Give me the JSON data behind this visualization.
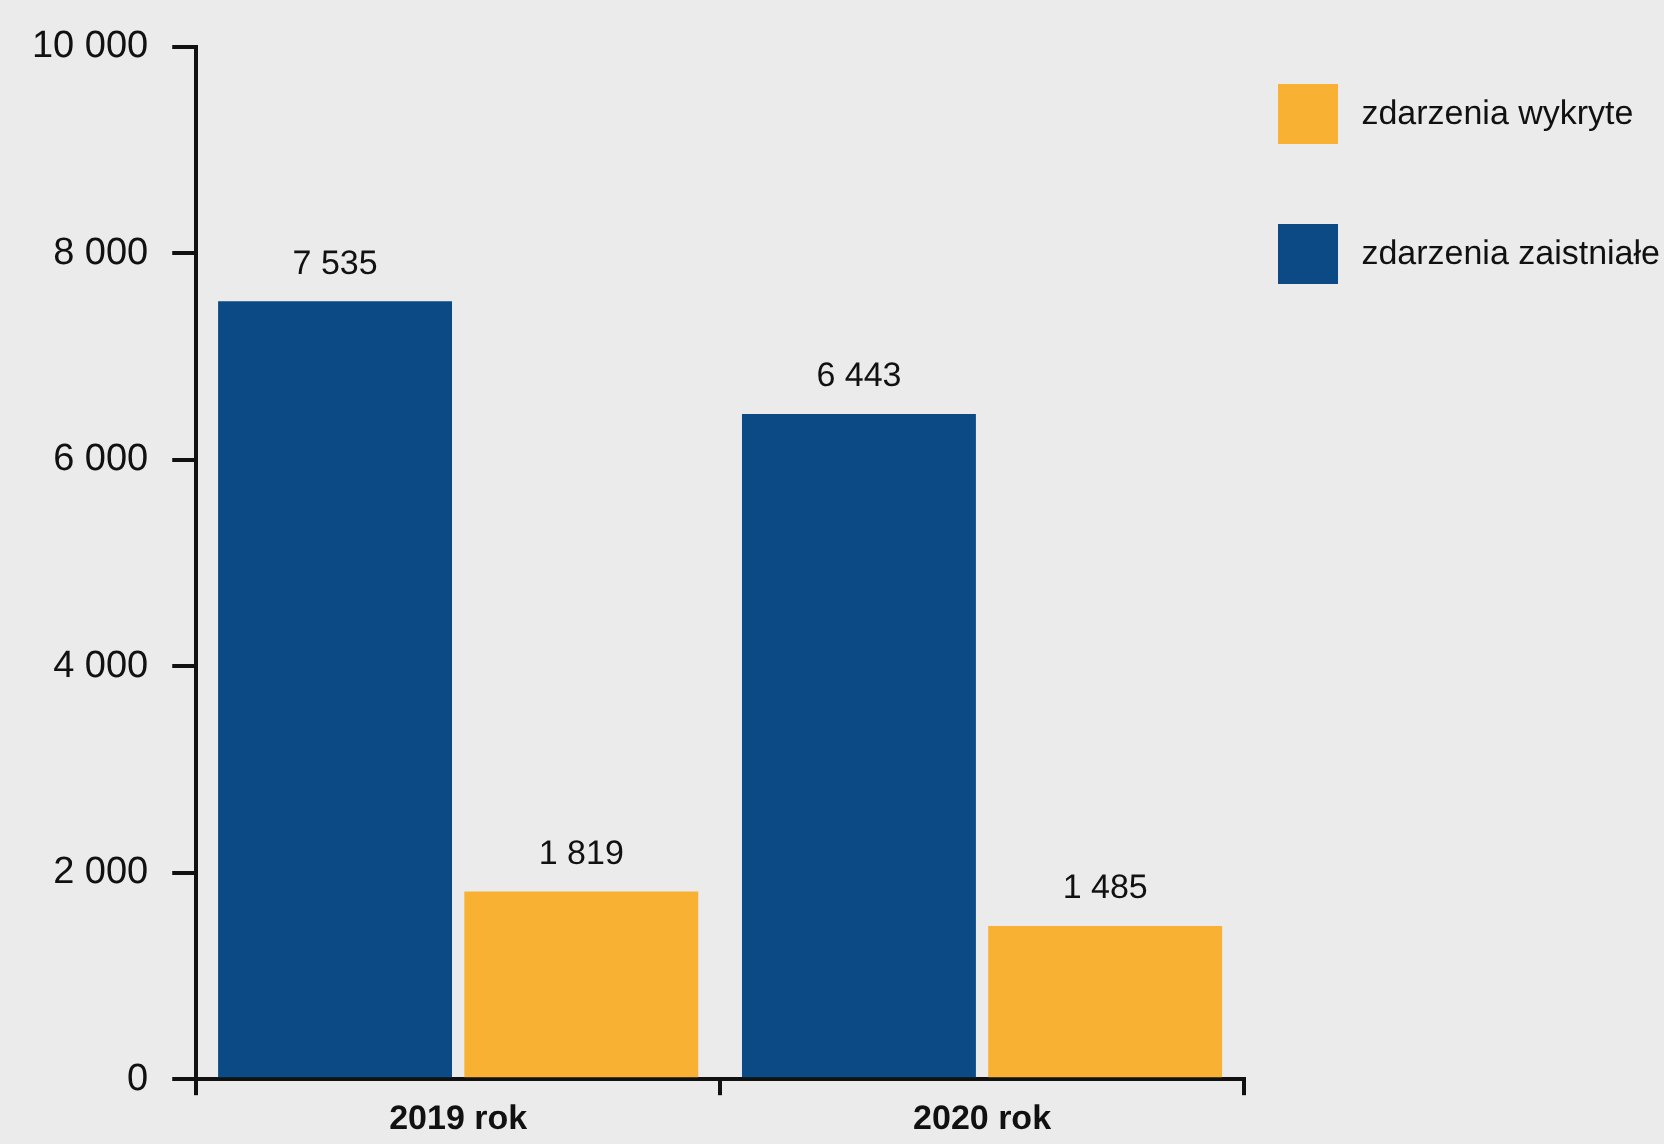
{
  "chart_data": {
    "type": "bar",
    "categories": [
      "2019 rok",
      "2020 rok"
    ],
    "series": [
      {
        "name": "zdarzenia zaistniałe",
        "color": "#0b4a84",
        "values": [
          7535,
          6443
        ],
        "value_labels": [
          "7 535",
          "6 443"
        ]
      },
      {
        "name": "zdarzenia wykryte",
        "color": "#f8b133",
        "values": [
          1819,
          1485
        ],
        "value_labels": [
          "1 819",
          "1 485"
        ]
      }
    ],
    "ylim": [
      0,
      10000
    ],
    "yticks": [
      {
        "value": 0,
        "label": "0"
      },
      {
        "value": 2000,
        "label": "2 000"
      },
      {
        "value": 4000,
        "label": "4 000"
      },
      {
        "value": 6000,
        "label": "6 000"
      },
      {
        "value": 8000,
        "label": "8 000"
      },
      {
        "value": 10000,
        "label": "10 000"
      }
    ],
    "legend": "top right"
  }
}
